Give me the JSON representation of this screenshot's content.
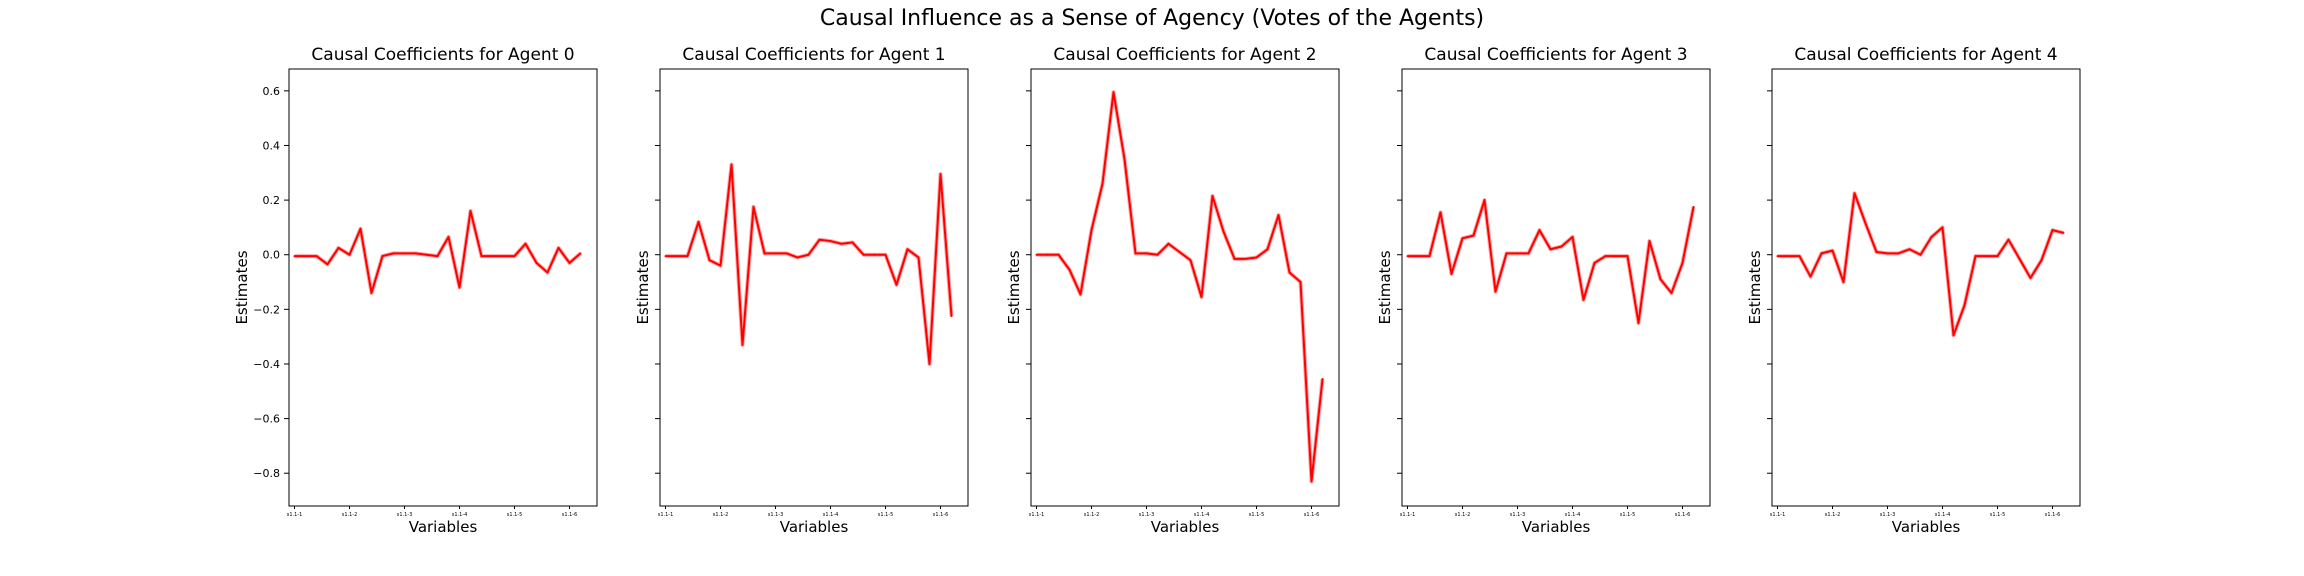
{
  "figure": {
    "suptitle": "Causal Influence as a Sense of Agency (Votes of the Agents)"
  },
  "colors": {
    "line": "#ff0000",
    "axes": "#000000",
    "background": "#ffffff"
  },
  "chart_data": [
    {
      "type": "line",
      "title": "Causal Coefficients for Agent 0",
      "xlabel": "Variables",
      "ylabel": "Estimates",
      "ylim": [
        -0.92,
        0.68
      ],
      "yticks": [
        0.6,
        0.4,
        0.2,
        0.0,
        -0.2,
        -0.4,
        -0.6,
        -0.8
      ],
      "ytick_labels": [
        "0.6",
        "0.4",
        "0.2",
        "0.0",
        "−0.2",
        "−0.4",
        "−0.6",
        "−0.8"
      ],
      "xticks": [
        0,
        5,
        10,
        15,
        20,
        25
      ],
      "xtick_labels": [
        "s1.1-1",
        "s1.1-2",
        "s1.1-3",
        "s1.1-4",
        "s1.1-5",
        "s1.1-6"
      ],
      "xlim": [
        -0.5,
        27.5
      ],
      "grid": false,
      "values": [
        -0.005,
        -0.005,
        -0.005,
        -0.035,
        0.025,
        0.0,
        0.095,
        -0.14,
        -0.005,
        0.005,
        0.005,
        0.005,
        0.0,
        -0.005,
        0.065,
        -0.12,
        0.16,
        -0.005,
        -0.005,
        -0.005,
        -0.005,
        0.04,
        -0.03,
        -0.065,
        0.025,
        -0.03,
        0.005
      ]
    },
    {
      "type": "line",
      "title": "Causal Coefficients for Agent 1",
      "xlabel": "Variables",
      "ylabel": "Estimates",
      "ylim": [
        -0.92,
        0.68
      ],
      "yticks": [
        0.6,
        0.4,
        0.2,
        0.0,
        -0.2,
        -0.4,
        -0.6,
        -0.8
      ],
      "xticks": [
        0,
        5,
        10,
        15,
        20,
        25
      ],
      "xtick_labels": [
        "s1.1-1",
        "s1.1-2",
        "s1.1-3",
        "s1.1-4",
        "s1.1-5",
        "s1.1-6"
      ],
      "xlim": [
        -0.5,
        27.5
      ],
      "grid": false,
      "values": [
        -0.005,
        -0.005,
        -0.005,
        0.12,
        -0.02,
        -0.04,
        0.33,
        -0.33,
        0.175,
        0.005,
        0.005,
        0.005,
        -0.01,
        0.0,
        0.055,
        0.05,
        0.04,
        0.045,
        0.0,
        0.0,
        0.0,
        -0.11,
        0.02,
        -0.01,
        -0.4,
        0.295,
        -0.225
      ]
    },
    {
      "type": "line",
      "title": "Causal Coefficients for Agent 2",
      "xlabel": "Variables",
      "ylabel": "Estimates",
      "ylim": [
        -0.92,
        0.68
      ],
      "yticks": [
        0.6,
        0.4,
        0.2,
        0.0,
        -0.2,
        -0.4,
        -0.6,
        -0.8
      ],
      "xticks": [
        0,
        5,
        10,
        15,
        20,
        25
      ],
      "xtick_labels": [
        "s1.1-1",
        "s1.1-2",
        "s1.1-3",
        "s1.1-4",
        "s1.1-5",
        "s1.1-6"
      ],
      "xlim": [
        -0.5,
        27.5
      ],
      "grid": false,
      "values": [
        0.0,
        0.0,
        0.0,
        -0.055,
        -0.145,
        0.09,
        0.26,
        0.595,
        0.35,
        0.005,
        0.005,
        0.0,
        0.04,
        0.01,
        -0.02,
        -0.155,
        0.215,
        0.085,
        -0.015,
        -0.015,
        -0.01,
        0.02,
        0.145,
        -0.065,
        -0.1,
        -0.83,
        -0.455
      ]
    },
    {
      "type": "line",
      "title": "Causal Coefficients for Agent 3",
      "xlabel": "Variables",
      "ylabel": "Estimates",
      "ylim": [
        -0.92,
        0.68
      ],
      "yticks": [
        0.6,
        0.4,
        0.2,
        0.0,
        -0.2,
        -0.4,
        -0.6,
        -0.8
      ],
      "xticks": [
        0,
        5,
        10,
        15,
        20,
        25
      ],
      "xtick_labels": [
        "s1.1-1",
        "s1.1-2",
        "s1.1-3",
        "s1.1-4",
        "s1.1-5",
        "s1.1-6"
      ],
      "xlim": [
        -0.5,
        27.5
      ],
      "grid": false,
      "values": [
        -0.005,
        -0.005,
        -0.005,
        0.155,
        -0.07,
        0.06,
        0.07,
        0.2,
        -0.135,
        0.005,
        0.005,
        0.005,
        0.09,
        0.02,
        0.03,
        0.065,
        -0.165,
        -0.03,
        -0.005,
        -0.005,
        -0.005,
        -0.25,
        0.05,
        -0.09,
        -0.14,
        -0.03,
        0.175
      ]
    },
    {
      "type": "line",
      "title": "Causal Coefficients for Agent 4",
      "xlabel": "Variables",
      "ylabel": "Estimates",
      "ylim": [
        -0.92,
        0.68
      ],
      "yticks": [
        0.6,
        0.4,
        0.2,
        0.0,
        -0.2,
        -0.4,
        -0.6,
        -0.8
      ],
      "xticks": [
        0,
        5,
        10,
        15,
        20,
        25
      ],
      "xtick_labels": [
        "s1.1-1",
        "s1.1-2",
        "s1.1-3",
        "s1.1-4",
        "s1.1-5",
        "s1.1-6"
      ],
      "xlim": [
        -0.5,
        27.5
      ],
      "grid": false,
      "values": [
        -0.005,
        -0.005,
        -0.005,
        -0.08,
        0.005,
        0.015,
        -0.1,
        0.225,
        0.115,
        0.01,
        0.005,
        0.005,
        0.02,
        0.0,
        0.065,
        0.1,
        -0.295,
        -0.185,
        -0.005,
        -0.005,
        -0.005,
        0.055,
        -0.015,
        -0.085,
        -0.02,
        0.09,
        0.08
      ]
    }
  ]
}
